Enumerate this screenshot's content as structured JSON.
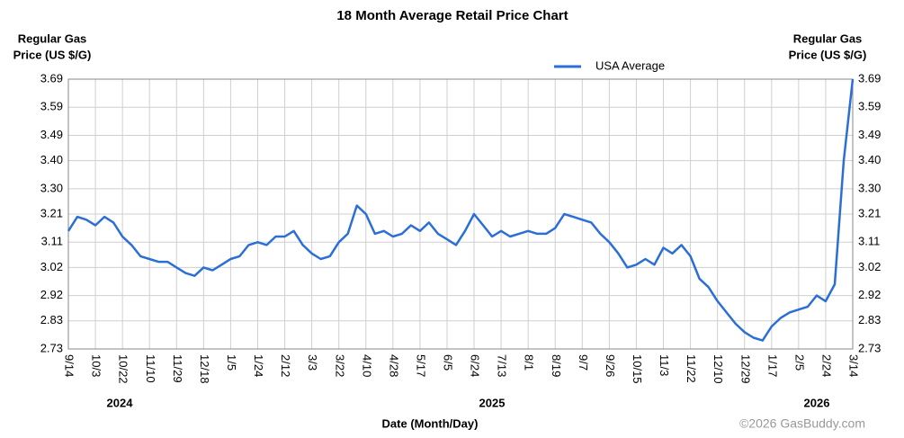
{
  "chart_data": {
    "type": "line",
    "title": "18 Month Average Retail Price Chart",
    "ylabel": [
      "Regular Gas",
      "Price (US $/G)"
    ],
    "xlabel": "Date (Month/Day)",
    "year_labels": [
      "2024",
      "2025",
      "2026"
    ],
    "credit": "©2026 GasBuddy.com",
    "categories": [
      "9/14",
      null,
      null,
      "10/3",
      null,
      null,
      "10/22",
      null,
      null,
      "11/10",
      null,
      null,
      "11/29",
      null,
      null,
      "12/18",
      null,
      null,
      "1/5",
      null,
      null,
      "1/24",
      null,
      null,
      "2/12",
      null,
      null,
      "3/3",
      null,
      null,
      "3/22",
      null,
      null,
      "4/10",
      null,
      null,
      "4/28",
      null,
      null,
      "5/17",
      null,
      null,
      "6/5",
      null,
      null,
      "6/24",
      null,
      null,
      "7/13",
      null,
      null,
      "8/1",
      null,
      null,
      "8/19",
      null,
      null,
      "9/7",
      null,
      null,
      "9/26",
      null,
      null,
      "10/15",
      null,
      null,
      "11/3",
      null,
      null,
      "11/22",
      null,
      null,
      "12/10",
      null,
      null,
      "12/29",
      null,
      null,
      "1/17",
      null,
      null,
      "2/5",
      null,
      null,
      "2/24",
      null,
      null,
      "3/14"
    ],
    "series": [
      {
        "name": "USA Average",
        "color": "#2b6fd6",
        "values": [
          3.15,
          3.2,
          3.19,
          3.17,
          3.2,
          3.18,
          3.13,
          3.1,
          3.06,
          3.05,
          3.04,
          3.04,
          3.02,
          3.0,
          2.99,
          3.02,
          3.01,
          3.03,
          3.05,
          3.06,
          3.1,
          3.11,
          3.1,
          3.13,
          3.13,
          3.15,
          3.1,
          3.07,
          3.05,
          3.06,
          3.11,
          3.14,
          3.24,
          3.21,
          3.14,
          3.15,
          3.13,
          3.14,
          3.17,
          3.15,
          3.18,
          3.14,
          3.12,
          3.1,
          3.15,
          3.21,
          3.17,
          3.13,
          3.15,
          3.13,
          3.14,
          3.15,
          3.14,
          3.14,
          3.16,
          3.21,
          3.2,
          3.19,
          3.18,
          3.14,
          3.11,
          3.07,
          3.02,
          3.03,
          3.05,
          3.03,
          3.09,
          3.07,
          3.1,
          3.06,
          2.98,
          2.95,
          2.9,
          2.86,
          2.82,
          2.79,
          2.77,
          2.76,
          2.81,
          2.84,
          2.86,
          2.87,
          2.88,
          2.92,
          2.9,
          2.96,
          3.4,
          3.69
        ]
      }
    ],
    "ylim": [
      2.73,
      3.69
    ],
    "yticks": [
      2.73,
      2.83,
      2.92,
      3.02,
      3.11,
      3.21,
      {
        "value": 3.3,
        "label": "3.30"
      },
      {
        "value": 3.4,
        "label": "3.40"
      },
      3.49,
      3.59,
      3.69
    ],
    "grid": true,
    "legend": "top"
  }
}
